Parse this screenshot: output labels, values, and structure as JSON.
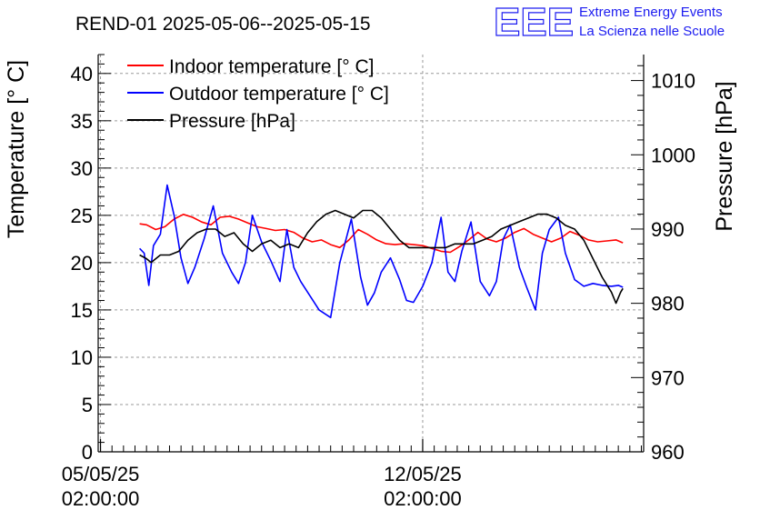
{
  "chart_data": {
    "type": "line",
    "title": "REND-01 2025-05-06--2025-05-15",
    "ylabel_left": "Temperature [° C]",
    "ylabel_right": "Pressure [hPa]",
    "xlabel": "",
    "x_ticks": [
      {
        "line1": "05/05/25",
        "line2": "02:00:00",
        "day": 0
      },
      {
        "line1": "12/05/25",
        "line2": "02:00:00",
        "day": 7
      }
    ],
    "xlim_days": [
      -0.05,
      11.8
    ],
    "ylim_left": [
      0,
      42
    ],
    "yticks_left": [
      0,
      5,
      10,
      15,
      20,
      25,
      30,
      35,
      40
    ],
    "ylim_right": [
      960,
      1013.5
    ],
    "yticks_right": [
      960,
      970,
      980,
      990,
      1000,
      1010
    ],
    "grid": true,
    "legend_position": "top-left",
    "series": [
      {
        "name": "Indoor temperature [° C]",
        "axis": "left",
        "color": "#ff0000",
        "x": [
          0.85,
          1.0,
          1.2,
          1.4,
          1.6,
          1.8,
          2.0,
          2.2,
          2.4,
          2.6,
          2.8,
          3.0,
          3.2,
          3.4,
          3.6,
          3.8,
          4.0,
          4.2,
          4.4,
          4.6,
          4.8,
          5.0,
          5.2,
          5.4,
          5.6,
          5.8,
          6.0,
          6.2,
          6.4,
          6.6,
          6.8,
          7.0,
          7.2,
          7.4,
          7.6,
          7.8,
          8.0,
          8.2,
          8.4,
          8.6,
          8.8,
          9.0,
          9.2,
          9.4,
          9.6,
          9.8,
          10.0,
          10.2,
          10.4,
          10.6,
          10.8,
          11.0,
          11.2,
          11.35
        ],
        "y": [
          24.1,
          24.0,
          23.5,
          23.8,
          24.6,
          25.1,
          24.8,
          24.3,
          24.0,
          24.8,
          24.9,
          24.6,
          24.2,
          23.8,
          23.6,
          23.4,
          23.5,
          23.2,
          22.6,
          22.2,
          22.4,
          21.9,
          21.6,
          22.4,
          23.5,
          23.0,
          22.4,
          22.0,
          21.9,
          22.0,
          21.9,
          21.8,
          21.5,
          21.2,
          21.1,
          21.7,
          22.4,
          23.2,
          22.5,
          22.2,
          22.6,
          23.2,
          23.6,
          23.0,
          22.6,
          22.2,
          22.6,
          23.3,
          22.9,
          22.4,
          22.2,
          22.3,
          22.4,
          22.1
        ]
      },
      {
        "name": "Outdoor temperature [° C]",
        "axis": "left",
        "color": "#0000ff",
        "x": [
          0.85,
          0.95,
          1.05,
          1.15,
          1.3,
          1.45,
          1.6,
          1.75,
          1.9,
          2.05,
          2.25,
          2.45,
          2.65,
          2.85,
          3.0,
          3.15,
          3.3,
          3.5,
          3.7,
          3.9,
          4.05,
          4.2,
          4.35,
          4.55,
          4.75,
          5.0,
          5.2,
          5.45,
          5.65,
          5.8,
          5.95,
          6.1,
          6.3,
          6.5,
          6.65,
          6.8,
          7.0,
          7.2,
          7.4,
          7.55,
          7.7,
          7.85,
          8.05,
          8.25,
          8.45,
          8.6,
          8.75,
          8.9,
          9.1,
          9.25,
          9.45,
          9.6,
          9.75,
          9.95,
          10.1,
          10.3,
          10.5,
          10.7,
          10.9,
          11.1,
          11.25,
          11.35
        ],
        "y": [
          21.5,
          21.0,
          17.6,
          21.8,
          23.0,
          28.2,
          25.0,
          20.5,
          17.8,
          19.5,
          22.5,
          26.0,
          21.0,
          19.0,
          17.8,
          20.0,
          25.0,
          22.2,
          20.2,
          18.0,
          23.5,
          19.5,
          18.0,
          16.5,
          15.0,
          14.2,
          20.0,
          24.6,
          18.5,
          15.5,
          16.8,
          19.0,
          20.5,
          18.2,
          16.0,
          15.8,
          17.5,
          20.0,
          24.8,
          19.0,
          18.0,
          21.2,
          24.3,
          18.0,
          16.5,
          18.0,
          22.5,
          24.0,
          19.5,
          17.5,
          15.0,
          21.0,
          23.5,
          24.8,
          21.0,
          18.2,
          17.5,
          17.8,
          17.6,
          17.5,
          17.6,
          17.4
        ]
      },
      {
        "name": "Pressure [hPa]",
        "axis": "right",
        "color": "#000000",
        "x": [
          0.85,
          1.0,
          1.1,
          1.3,
          1.5,
          1.7,
          1.9,
          2.1,
          2.3,
          2.5,
          2.7,
          2.9,
          3.1,
          3.3,
          3.5,
          3.7,
          3.9,
          4.1,
          4.3,
          4.5,
          4.7,
          4.9,
          5.1,
          5.3,
          5.5,
          5.7,
          5.9,
          6.1,
          6.3,
          6.5,
          6.7,
          6.9,
          7.1,
          7.3,
          7.5,
          7.7,
          7.9,
          8.1,
          8.3,
          8.5,
          8.7,
          8.9,
          9.1,
          9.3,
          9.5,
          9.7,
          9.9,
          10.1,
          10.3,
          10.5,
          10.7,
          10.9,
          11.1,
          11.2,
          11.3,
          11.35
        ],
        "y": [
          986.5,
          986.0,
          985.5,
          986.5,
          986.5,
          987.0,
          988.5,
          989.5,
          990.0,
          990.0,
          989.0,
          989.5,
          988.0,
          987.0,
          988.0,
          988.5,
          987.5,
          988.0,
          987.5,
          989.5,
          991.0,
          992.0,
          992.5,
          992.0,
          991.5,
          992.5,
          992.5,
          991.5,
          990.0,
          988.5,
          987.5,
          987.5,
          987.5,
          987.5,
          987.5,
          988.0,
          988.0,
          988.0,
          988.5,
          989.0,
          990.0,
          990.5,
          991.0,
          991.5,
          992.0,
          992.0,
          991.5,
          990.5,
          990.0,
          988.5,
          986.0,
          983.5,
          981.5,
          980.0,
          981.5,
          982.0
        ]
      }
    ]
  },
  "logo": {
    "letters": "EEE",
    "line1": "Extreme Energy Events",
    "line2": "La Scienza nelle Scuole"
  }
}
